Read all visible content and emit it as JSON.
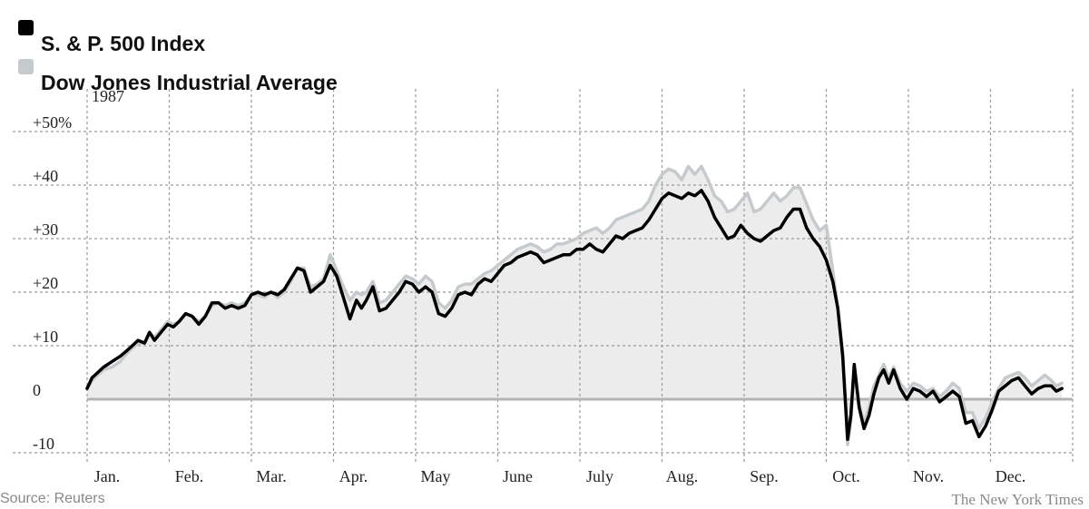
{
  "colors": {
    "sp500": "#000000",
    "dow": "#c5cacd",
    "fill": "#ececec",
    "grid": "#9a9a9a",
    "zero": "#b3b3b3"
  },
  "legend": [
    {
      "label": "S. & P. 500 Index",
      "color": "#000000"
    },
    {
      "label": "Dow Jones Industrial Average",
      "color": "#c5cacd"
    }
  ],
  "source": "Source: Reuters",
  "credit": "The New York Times",
  "chart_data": {
    "type": "line",
    "year_label": "1987",
    "x_ticks": [
      "Jan.",
      "Feb.",
      "Mar.",
      "Apr.",
      "May",
      "June",
      "July",
      "Aug.",
      "Sep.",
      "Oct.",
      "Nov.",
      "Dec."
    ],
    "y_ticks": [
      -10,
      0,
      10,
      20,
      30,
      40,
      50
    ],
    "y_tick_labels": [
      "-10",
      "0",
      "+10",
      "+20",
      "+30",
      "+40",
      "+50%"
    ],
    "ylim": [
      -11,
      55
    ],
    "xlim": [
      0,
      12
    ],
    "grid": true,
    "legend_position": "top-left",
    "series": [
      {
        "name": "S. & P. 500 Index",
        "color": "#000000",
        "x": [
          0.0,
          0.06,
          0.13,
          0.2,
          0.3,
          0.4,
          0.48,
          0.55,
          0.62,
          0.7,
          0.76,
          0.82,
          0.9,
          0.98,
          1.05,
          1.12,
          1.2,
          1.28,
          1.36,
          1.44,
          1.52,
          1.6,
          1.68,
          1.76,
          1.84,
          1.92,
          2.0,
          2.08,
          2.16,
          2.24,
          2.32,
          2.4,
          2.48,
          2.56,
          2.64,
          2.72,
          2.8,
          2.88,
          2.96,
          3.04,
          3.12,
          3.2,
          3.28,
          3.34,
          3.4,
          3.48,
          3.56,
          3.64,
          3.72,
          3.8,
          3.88,
          3.96,
          4.04,
          4.12,
          4.2,
          4.28,
          4.36,
          4.44,
          4.52,
          4.6,
          4.68,
          4.76,
          4.84,
          4.92,
          5.0,
          5.08,
          5.16,
          5.24,
          5.32,
          5.4,
          5.48,
          5.56,
          5.64,
          5.72,
          5.8,
          5.88,
          5.96,
          6.04,
          6.12,
          6.2,
          6.28,
          6.36,
          6.44,
          6.52,
          6.6,
          6.68,
          6.76,
          6.84,
          6.92,
          7.0,
          7.08,
          7.16,
          7.24,
          7.32,
          7.4,
          7.48,
          7.56,
          7.64,
          7.72,
          7.8,
          7.88,
          7.96,
          8.04,
          8.12,
          8.2,
          8.28,
          8.36,
          8.44,
          8.52,
          8.6,
          8.68,
          8.76,
          8.84,
          8.92,
          9.0,
          9.08,
          9.14,
          9.2,
          9.26,
          9.3,
          9.34,
          9.4,
          9.46,
          9.52,
          9.58,
          9.64,
          9.7,
          9.76,
          9.82,
          9.9,
          9.98,
          10.06,
          10.14,
          10.22,
          10.3,
          10.38,
          10.46,
          10.54,
          10.62,
          10.7,
          10.78,
          10.86,
          10.94,
          11.02,
          11.1,
          11.18,
          11.26,
          11.34,
          11.42,
          11.5,
          11.58,
          11.66,
          11.74,
          11.8,
          11.87
        ],
        "values": [
          2.0,
          4.0,
          5.0,
          6.0,
          7.0,
          8.0,
          9.0,
          10.0,
          11.0,
          10.5,
          12.5,
          11.0,
          12.5,
          14.0,
          13.5,
          14.5,
          16.0,
          15.5,
          14.0,
          15.5,
          18.0,
          18.0,
          17.0,
          17.5,
          17.0,
          17.5,
          19.5,
          20.0,
          19.5,
          20.0,
          19.5,
          20.5,
          22.5,
          24.5,
          24.0,
          20.0,
          21.0,
          22.0,
          25.0,
          23.0,
          19.0,
          15.0,
          18.5,
          17.0,
          18.5,
          21.0,
          16.5,
          17.0,
          18.5,
          20.0,
          22.0,
          21.5,
          20.0,
          21.0,
          20.0,
          16.0,
          15.5,
          17.0,
          19.5,
          20.0,
          19.5,
          21.5,
          22.5,
          22.0,
          23.5,
          25.0,
          25.5,
          26.5,
          27.0,
          27.5,
          27.0,
          25.5,
          26.0,
          26.5,
          27.0,
          27.0,
          28.0,
          28.0,
          29.0,
          28.0,
          27.5,
          29.0,
          30.5,
          30.0,
          31.0,
          31.5,
          32.0,
          33.5,
          35.5,
          37.5,
          38.5,
          38.0,
          37.5,
          38.5,
          38.0,
          39.0,
          37.0,
          34.0,
          32.0,
          30.0,
          30.5,
          32.5,
          31.0,
          30.0,
          29.5,
          30.5,
          31.5,
          32.0,
          34.0,
          35.5,
          35.5,
          32.0,
          30.0,
          28.5,
          26.0,
          22.0,
          17.0,
          8.0,
          -7.5,
          -3.0,
          6.5,
          -1.5,
          -5.5,
          -3.0,
          1.0,
          4.0,
          5.5,
          3.0,
          5.5,
          2.0,
          0.0,
          2.0,
          1.5,
          0.5,
          1.5,
          -0.5,
          0.5,
          1.5,
          0.5,
          -4.5,
          -4.0,
          -7.0,
          -5.0,
          -2.0,
          1.5,
          2.5,
          3.5,
          4.0,
          2.5,
          1.0,
          2.0,
          2.5,
          2.5,
          1.5,
          2.0
        ],
        "line_width": 3.5
      },
      {
        "name": "Dow Jones Industrial Average",
        "color": "#c5cacd",
        "x": [
          0.0,
          0.06,
          0.13,
          0.2,
          0.3,
          0.4,
          0.48,
          0.55,
          0.62,
          0.7,
          0.76,
          0.82,
          0.9,
          0.98,
          1.05,
          1.12,
          1.2,
          1.28,
          1.36,
          1.44,
          1.52,
          1.6,
          1.68,
          1.76,
          1.84,
          1.92,
          2.0,
          2.08,
          2.16,
          2.24,
          2.32,
          2.4,
          2.48,
          2.56,
          2.64,
          2.72,
          2.8,
          2.88,
          2.96,
          3.04,
          3.12,
          3.2,
          3.28,
          3.34,
          3.4,
          3.48,
          3.56,
          3.64,
          3.72,
          3.8,
          3.88,
          3.96,
          4.04,
          4.12,
          4.2,
          4.28,
          4.36,
          4.44,
          4.52,
          4.6,
          4.68,
          4.76,
          4.84,
          4.92,
          5.0,
          5.08,
          5.16,
          5.24,
          5.32,
          5.4,
          5.48,
          5.56,
          5.64,
          5.72,
          5.8,
          5.88,
          5.96,
          6.04,
          6.12,
          6.2,
          6.28,
          6.36,
          6.44,
          6.52,
          6.6,
          6.68,
          6.76,
          6.84,
          6.92,
          7.0,
          7.08,
          7.16,
          7.24,
          7.32,
          7.4,
          7.48,
          7.56,
          7.64,
          7.72,
          7.8,
          7.88,
          7.96,
          8.04,
          8.12,
          8.2,
          8.28,
          8.36,
          8.44,
          8.52,
          8.6,
          8.68,
          8.76,
          8.84,
          8.92,
          9.0,
          9.08,
          9.14,
          9.2,
          9.26,
          9.3,
          9.34,
          9.4,
          9.46,
          9.52,
          9.58,
          9.64,
          9.7,
          9.76,
          9.82,
          9.9,
          9.98,
          10.06,
          10.14,
          10.22,
          10.3,
          10.38,
          10.46,
          10.54,
          10.62,
          10.7,
          10.78,
          10.86,
          10.94,
          11.02,
          11.1,
          11.18,
          11.26,
          11.34,
          11.42,
          11.5,
          11.58,
          11.66,
          11.74,
          11.8,
          11.87
        ],
        "values": [
          2.0,
          3.5,
          4.5,
          5.5,
          6.0,
          7.0,
          8.5,
          9.5,
          10.5,
          10.5,
          12.5,
          11.5,
          13.0,
          14.5,
          14.0,
          14.5,
          16.0,
          15.5,
          14.5,
          15.5,
          17.5,
          18.0,
          17.5,
          18.0,
          17.5,
          18.0,
          19.5,
          19.5,
          19.0,
          20.0,
          19.0,
          20.0,
          22.0,
          24.5,
          24.5,
          21.0,
          21.5,
          22.5,
          27.0,
          24.0,
          21.0,
          18.5,
          20.0,
          19.5,
          20.0,
          22.0,
          18.0,
          18.5,
          20.0,
          21.5,
          23.0,
          22.5,
          21.5,
          23.0,
          22.0,
          18.0,
          17.0,
          18.5,
          21.0,
          21.5,
          21.5,
          22.5,
          23.5,
          24.0,
          25.0,
          26.0,
          27.0,
          28.0,
          28.5,
          29.0,
          28.5,
          27.5,
          28.0,
          29.0,
          29.0,
          29.5,
          30.0,
          31.0,
          31.5,
          32.0,
          31.0,
          32.0,
          33.5,
          34.0,
          34.5,
          35.0,
          35.5,
          37.0,
          40.0,
          42.0,
          43.0,
          42.5,
          41.0,
          43.5,
          42.0,
          43.5,
          41.0,
          38.0,
          37.0,
          35.0,
          35.5,
          37.0,
          38.5,
          35.0,
          35.5,
          37.0,
          38.5,
          37.0,
          38.0,
          39.5,
          39.5,
          36.5,
          33.5,
          31.5,
          32.5,
          24.0,
          17.0,
          9.0,
          -8.5,
          -4.0,
          5.0,
          -1.0,
          -4.5,
          -1.5,
          2.5,
          4.5,
          6.5,
          4.0,
          6.0,
          3.0,
          1.5,
          3.0,
          2.5,
          1.5,
          2.0,
          0.5,
          1.5,
          3.0,
          2.0,
          -2.5,
          -2.5,
          -5.5,
          -3.5,
          -0.5,
          2.0,
          4.0,
          4.5,
          5.0,
          4.0,
          2.5,
          3.5,
          4.5,
          3.5,
          2.5,
          3.0
        ],
        "line_width": 3.5
      }
    ]
  }
}
